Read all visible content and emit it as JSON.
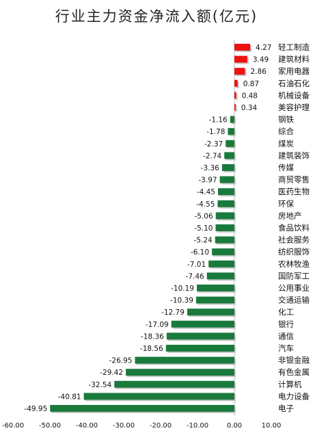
{
  "chart_data": {
    "type": "bar",
    "orientation": "horizontal",
    "title": "行业主力资金净流入额(亿元)",
    "xlabel": "",
    "ylabel": "",
    "xlim": [
      -60,
      10
    ],
    "xticks": [
      -60,
      -50,
      -40,
      -30,
      -20,
      -10,
      0,
      10
    ],
    "xtick_labels": [
      "-60.00",
      "-50.00",
      "-40.00",
      "-30.00",
      "-20.00",
      "-10.00",
      "0.00",
      "10.00"
    ],
    "grid": false,
    "legend": "none",
    "colors": {
      "positive": "#ee1111",
      "negative": "#1a7a3c"
    },
    "categories": [
      "轻工制造",
      "建筑材料",
      "家用电器",
      "石油石化",
      "机械设备",
      "美容护理",
      "钢铁",
      "综合",
      "煤炭",
      "建筑装饰",
      "传媒",
      "商贸零售",
      "医药生物",
      "环保",
      "房地产",
      "食品饮料",
      "社会服务",
      "纺织服饰",
      "农林牧渔",
      "国防军工",
      "公用事业",
      "交通运输",
      "化工",
      "银行",
      "通信",
      "汽车",
      "非银金融",
      "有色金属",
      "计算机",
      "电力设备",
      "电子"
    ],
    "values": [
      4.27,
      3.49,
      2.86,
      0.87,
      0.48,
      0.34,
      -1.16,
      -1.78,
      -2.37,
      -2.74,
      -3.36,
      -3.97,
      -4.45,
      -4.55,
      -5.06,
      -5.1,
      -5.24,
      -6.1,
      -7.01,
      -7.46,
      -10.19,
      -10.39,
      -12.79,
      -17.09,
      -18.36,
      -18.56,
      -26.95,
      -29.42,
      -32.54,
      -40.81,
      -49.95
    ],
    "value_labels": [
      "4.27",
      "3.49",
      "2.86",
      "0.87",
      "0.48",
      "0.34",
      "-1.16",
      "-1.78",
      "-2.37",
      "-2.74",
      "-3.36",
      "-3.97",
      "-4.45",
      "-4.55",
      "-5.06",
      "-5.10",
      "-5.24",
      "-6.10",
      "-7.01",
      "-7.46",
      "-10.19",
      "-10.39",
      "-12.79",
      "-17.09",
      "-18.36",
      "-18.56",
      "-26.95",
      "-29.42",
      "-32.54",
      "-40.81",
      "-49.95"
    ]
  }
}
